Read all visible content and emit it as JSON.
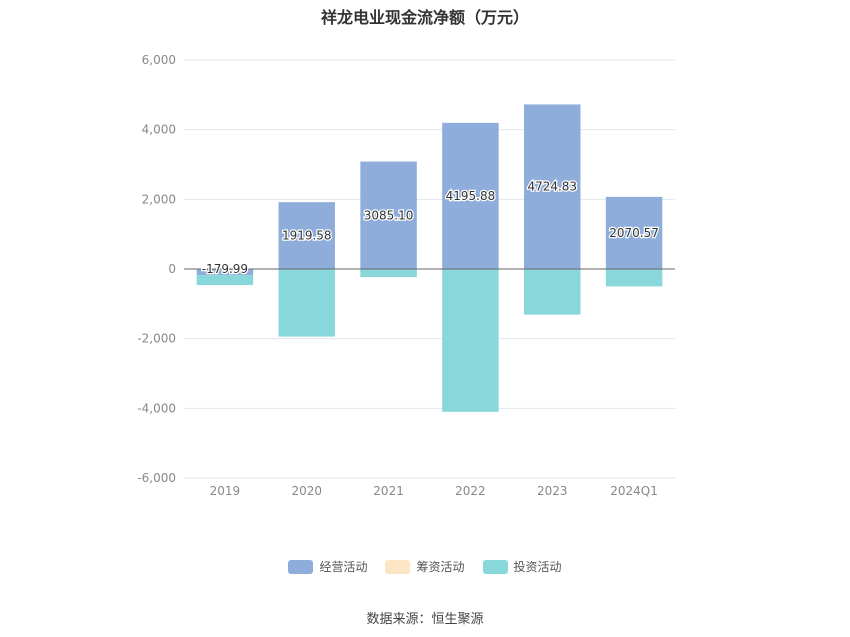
{
  "title": "祥龙电业现金流净额（万元）",
  "source": "数据来源：恒生聚源",
  "chart_data": {
    "type": "bar",
    "stacked": true,
    "categories": [
      "2019",
      "2020",
      "2021",
      "2022",
      "2023",
      "2024Q1"
    ],
    "ylim": [
      -6000,
      6000
    ],
    "yticks": [
      -6000,
      -4000,
      -2000,
      0,
      2000,
      4000,
      6000
    ],
    "ytick_labels": [
      "-6,000",
      "-4,000",
      "-2,000",
      "0",
      "2,000",
      "4,000",
      "6,000"
    ],
    "grid": true,
    "legend_position": "bottom",
    "series": [
      {
        "name": "经营活动",
        "color": "#8eaddb",
        "values": [
          -179.99,
          1919.58,
          3085.1,
          4195.88,
          4724.83,
          2070.57
        ],
        "labels": [
          "-179.99",
          "1919.58",
          "3085.10",
          "4195.88",
          "4724.83",
          "2070.57"
        ]
      },
      {
        "name": "筹资活动",
        "color": "#fbe5c4",
        "values": [
          0,
          0,
          0,
          0,
          0,
          0
        ]
      },
      {
        "name": "投资活动",
        "color": "#87d7db",
        "values": [
          -280,
          -1940,
          -230,
          -4100,
          -1310,
          -500
        ]
      }
    ]
  }
}
